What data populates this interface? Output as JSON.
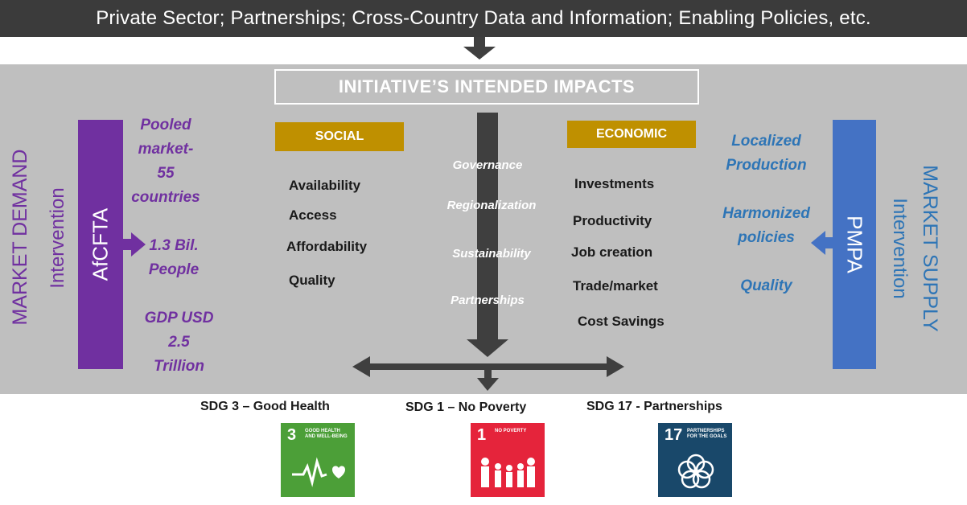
{
  "top_banner": {
    "text": "Private Sector; Partnerships; Cross-Country Data and Information; Enabling Policies, etc."
  },
  "impacts_title": "INITIATIVE’S INTENDED IMPACTS",
  "left": {
    "outer_label": "MARKET DEMAND",
    "inner_label": "Intervention",
    "bar_label": "AfCFTA",
    "bar_color": "#7030a0",
    "stats": [
      {
        "lines": [
          "Pooled",
          "market-",
          "55",
          "countries"
        ]
      },
      {
        "lines": [
          "1.3 Bil.",
          "People"
        ]
      },
      {
        "lines": [
          "GDP  USD",
          "2.5",
          "Trillion"
        ]
      }
    ]
  },
  "right": {
    "outer_label": "MARKET SUPPLY",
    "inner_label": "Intervention",
    "bar_label": "PMPA",
    "bar_color": "#4472c4",
    "stats": [
      {
        "lines": [
          "Localized",
          "Production"
        ]
      },
      {
        "lines": [
          "Harmonized",
          "policies"
        ]
      },
      {
        "lines": [
          "Quality"
        ]
      }
    ]
  },
  "social": {
    "header": "SOCIAL",
    "items": [
      "Availability",
      "Access",
      "Affordability",
      "Quality"
    ]
  },
  "economic": {
    "header": "ECONOMIC",
    "items": [
      "Investments",
      "Productivity",
      "Job creation",
      "Trade/market",
      "Cost Savings"
    ]
  },
  "middle_items": [
    "Governance",
    "Regionalization",
    "Sustainability",
    "Partnerships"
  ],
  "sdgs": [
    {
      "label": "SDG 3 – Good Health",
      "number": "3",
      "small_text": "GOOD HEALTH AND WELL-BEING",
      "color": "#4c9f38",
      "icon": "heartbeat-icon"
    },
    {
      "label": "SDG 1 – No Poverty",
      "number": "1",
      "small_text": "NO POVERTY",
      "color": "#e5243b",
      "icon": "family-icon"
    },
    {
      "label": "SDG 17 - Partnerships",
      "number": "17",
      "small_text": "PARTNERSHIPS FOR THE GOALS",
      "color": "#19486a",
      "icon": "rings-icon"
    }
  ],
  "colors": {
    "banner": "#3b3b3b",
    "panel": "#bfbfbf",
    "gold": "#bf9000",
    "arrow": "#3f3f3f"
  }
}
